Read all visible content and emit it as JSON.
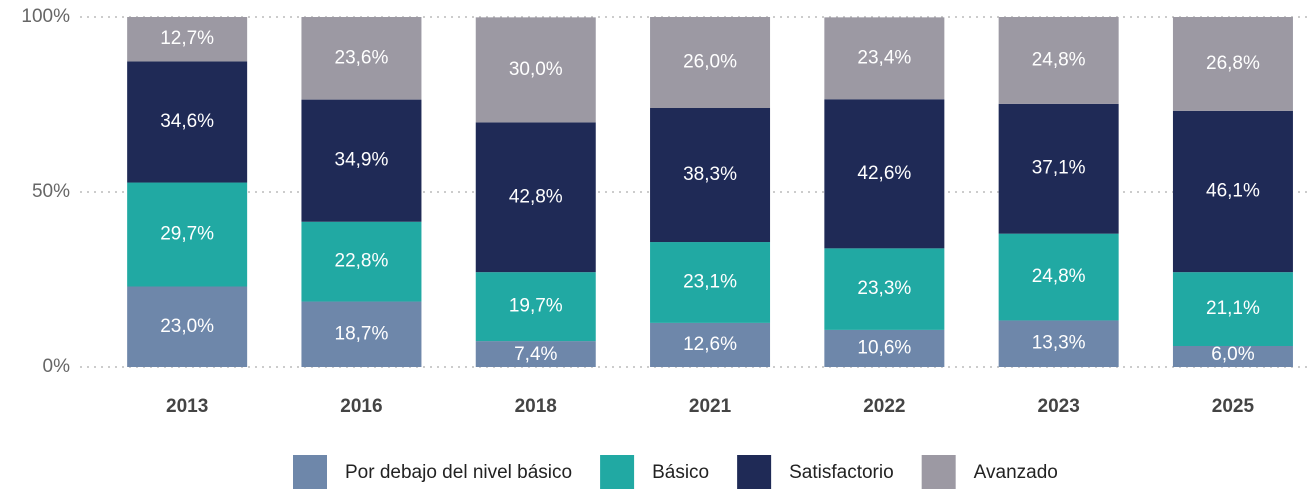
{
  "chart_data": {
    "type": "stacked_bar",
    "categories": [
      "2013",
      "2016",
      "2018",
      "2021",
      "2022",
      "2023",
      "2025"
    ],
    "series": [
      {
        "name": "Por debajo del nivel básico",
        "color": "#6e87aa",
        "values": [
          23.0,
          18.7,
          7.4,
          12.6,
          10.6,
          13.3,
          6.0
        ],
        "value_labels": [
          "23,0%",
          "18,7%",
          "7,4%",
          "12,6%",
          "10,6%",
          "13,3%",
          "6,0%"
        ]
      },
      {
        "name": "Básico",
        "color": "#21a9a3",
        "values": [
          29.7,
          22.8,
          19.7,
          23.1,
          23.3,
          24.8,
          21.1
        ],
        "value_labels": [
          "29,7%",
          "22,8%",
          "19,7%",
          "23,1%",
          "23,3%",
          "24,8%",
          "21,1%"
        ]
      },
      {
        "name": "Satisfactorio",
        "color": "#1f2a56",
        "values": [
          34.6,
          34.9,
          42.8,
          38.3,
          42.6,
          37.1,
          46.1
        ],
        "value_labels": [
          "34,6%",
          "34,9%",
          "42,8%",
          "38,3%",
          "42,6%",
          "37,1%",
          "46,1%"
        ]
      },
      {
        "name": "Avanzado",
        "color": "#9c99a3",
        "values": [
          12.7,
          23.6,
          30.0,
          26.0,
          23.4,
          24.8,
          26.8
        ],
        "value_labels": [
          "12,7%",
          "23,6%",
          "30,0%",
          "26,0%",
          "23,4%",
          "24,8%",
          "26,8%"
        ]
      }
    ],
    "ylim": [
      0,
      100
    ],
    "yticks": [
      {
        "value": 0,
        "label": "0%"
      },
      {
        "value": 50,
        "label": "50%"
      },
      {
        "value": 100,
        "label": "100%"
      }
    ],
    "grid": true,
    "legend": "bottom"
  }
}
